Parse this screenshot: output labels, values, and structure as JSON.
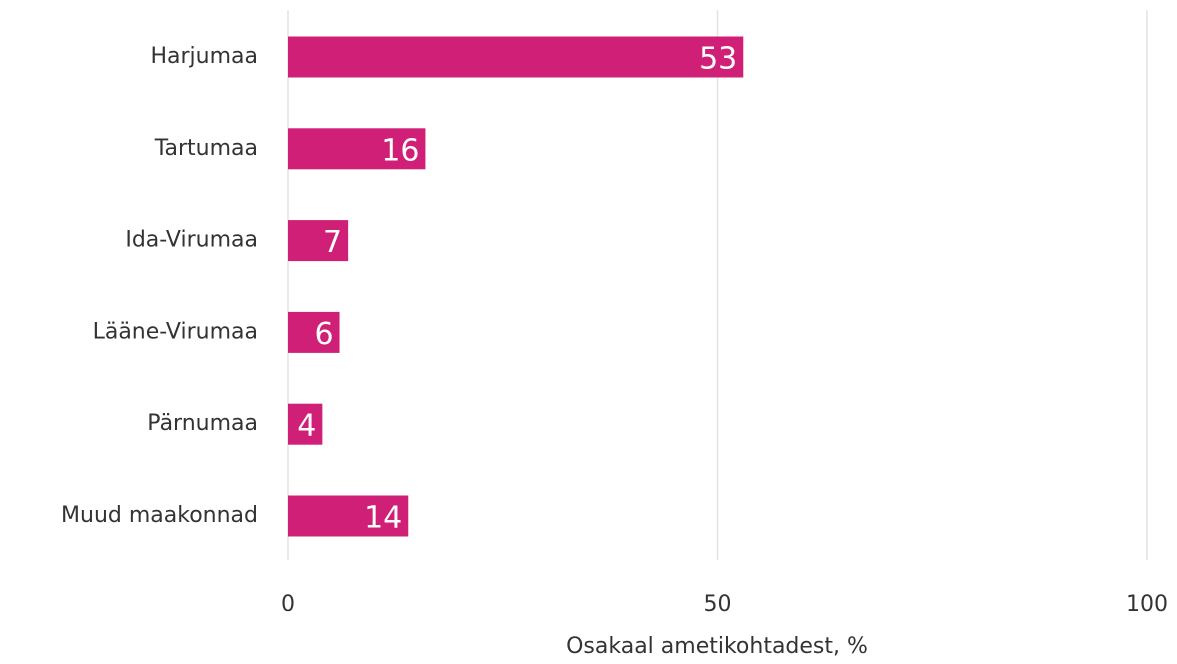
{
  "chart_data": {
    "type": "bar",
    "orientation": "horizontal",
    "categories": [
      "Harjumaa",
      "Tartumaa",
      "Ida-Virumaa",
      "Lääne-Virumaa",
      "Pärnumaa",
      "Muud maakonnad"
    ],
    "values": [
      53,
      16,
      7,
      6,
      4,
      14
    ],
    "color": "#d01f77",
    "xlabel": "Osakaal ametikohtadest, %",
    "xlim": [
      0,
      100
    ],
    "xticks": [
      0,
      50,
      100
    ],
    "grid": true
  }
}
